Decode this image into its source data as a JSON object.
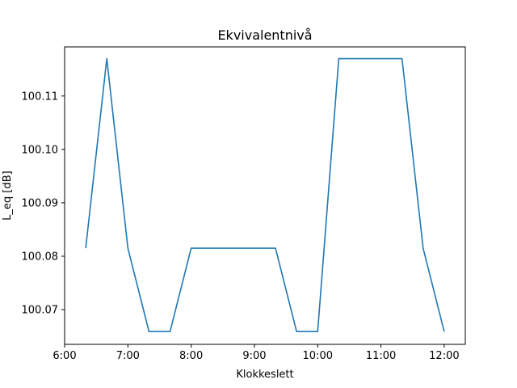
{
  "chart_data": {
    "type": "line",
    "title": "Ekvivalentnivå",
    "xlabel": "Klokkeslett",
    "ylabel": "L_eq [dB]",
    "xlim": [
      "6:00",
      "12:20"
    ],
    "ylim": [
      100.0635,
      100.1192
    ],
    "xticks": [
      "6:00",
      "7:00",
      "8:00",
      "9:00",
      "10:00",
      "11:00",
      "12:00"
    ],
    "yticks": [
      100.07,
      100.08,
      100.09,
      100.1,
      100.11
    ],
    "ytick_labels": [
      "100.07",
      "100.08",
      "100.09",
      "100.10",
      "100.11"
    ],
    "grid": false,
    "series": [
      {
        "color": "#1f77b4",
        "x": [
          "6:20",
          "6:40",
          "7:00",
          "7:20",
          "7:40",
          "8:00",
          "8:20",
          "8:40",
          "9:00",
          "9:20",
          "9:40",
          "10:00",
          "10:20",
          "10:40",
          "11:00",
          "11:20",
          "11:40",
          "12:00"
        ],
        "y": [
          100.0815,
          100.117,
          100.0815,
          100.0659,
          100.0659,
          100.0815,
          100.0815,
          100.0815,
          100.0815,
          100.0815,
          100.0659,
          100.0659,
          100.117,
          100.117,
          100.117,
          100.117,
          100.0815,
          100.0659
        ]
      }
    ]
  }
}
